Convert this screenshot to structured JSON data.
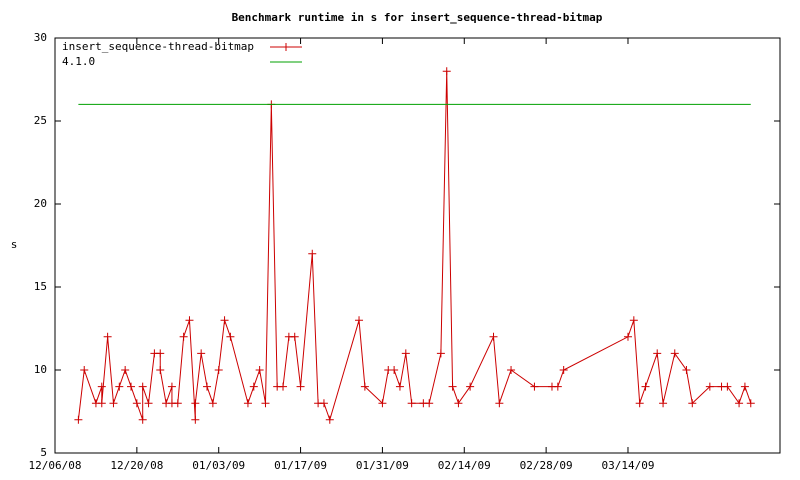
{
  "chart_data": {
    "type": "line",
    "title": "Benchmark runtime in s for insert_sequence-thread-bitmap",
    "y_label": "s",
    "xlim": [
      "2008-12-06",
      "2009-04-09"
    ],
    "xticks": [
      {
        "value": "2008-12-06",
        "label": "12/06/08"
      },
      {
        "value": "2008-12-20",
        "label": "12/20/08"
      },
      {
        "value": "2009-01-03",
        "label": "01/03/09"
      },
      {
        "value": "2009-01-17",
        "label": "01/17/09"
      },
      {
        "value": "2009-01-31",
        "label": "01/31/09"
      },
      {
        "value": "2009-02-14",
        "label": "02/14/09"
      },
      {
        "value": "2009-02-28",
        "label": "02/28/09"
      },
      {
        "value": "2009-03-14",
        "label": "03/14/09"
      }
    ],
    "ylim": [
      5,
      30
    ],
    "yticks": [
      5,
      10,
      15,
      20,
      25,
      30
    ],
    "legend": "top-left",
    "series": [
      {
        "name": "insert_sequence-thread-bitmap",
        "color": "#cc0000",
        "markers": true,
        "x": [
          "2008-12-10",
          "2008-12-11",
          "2008-12-13",
          "2008-12-14",
          "2008-12-14",
          "2008-12-15",
          "2008-12-16",
          "2008-12-17",
          "2008-12-18",
          "2008-12-19",
          "2008-12-20",
          "2008-12-21",
          "2008-12-21",
          "2008-12-22",
          "2008-12-23",
          "2008-12-24",
          "2008-12-24",
          "2008-12-25",
          "2008-12-26",
          "2008-12-26",
          "2008-12-27",
          "2008-12-28",
          "2008-12-29",
          "2008-12-30",
          "2008-12-30",
          "2008-12-31",
          "2009-01-01",
          "2009-01-02",
          "2009-01-03",
          "2009-01-04",
          "2009-01-05",
          "2009-01-08",
          "2009-01-09",
          "2009-01-10",
          "2009-01-11",
          "2009-01-12",
          "2009-01-13",
          "2009-01-14",
          "2009-01-15",
          "2009-01-16",
          "2009-01-17",
          "2009-01-19",
          "2009-01-20",
          "2009-01-21",
          "2009-01-22",
          "2009-01-27",
          "2009-01-28",
          "2009-01-31",
          "2009-02-01",
          "2009-02-02",
          "2009-02-03",
          "2009-02-04",
          "2009-02-05",
          "2009-02-07",
          "2009-02-08",
          "2009-02-10",
          "2009-02-11",
          "2009-02-12",
          "2009-02-13",
          "2009-02-15",
          "2009-02-19",
          "2009-02-20",
          "2009-02-22",
          "2009-02-26",
          "2009-03-01",
          "2009-03-02",
          "2009-03-03",
          "2009-03-14",
          "2009-03-15",
          "2009-03-16",
          "2009-03-17",
          "2009-03-19",
          "2009-03-20",
          "2009-03-22",
          "2009-03-24",
          "2009-03-25",
          "2009-03-28",
          "2009-03-30",
          "2009-03-31",
          "2009-04-02",
          "2009-04-03",
          "2009-04-04"
        ],
        "values": [
          7,
          10,
          8,
          9,
          8,
          12,
          8,
          9,
          10,
          9,
          8,
          7,
          9,
          8,
          11,
          11,
          10,
          8,
          9,
          8,
          8,
          12,
          13,
          7,
          8,
          11,
          9,
          8,
          10,
          13,
          12,
          8,
          9,
          10,
          8,
          26,
          9,
          9,
          12,
          12,
          9,
          17,
          8,
          8,
          7,
          13,
          9,
          8,
          10,
          10,
          9,
          11,
          8,
          8,
          8,
          11,
          28,
          9,
          8,
          9,
          12,
          8,
          10,
          9,
          9,
          9,
          10,
          12,
          13,
          8,
          9,
          11,
          8,
          11,
          10,
          8,
          9,
          9,
          9,
          8,
          9,
          8
        ]
      },
      {
        "name": "4.1.0",
        "color": "#00a000",
        "markers": false,
        "x": [
          "2008-12-10",
          "2009-04-04"
        ],
        "values": [
          26,
          26
        ]
      }
    ]
  }
}
